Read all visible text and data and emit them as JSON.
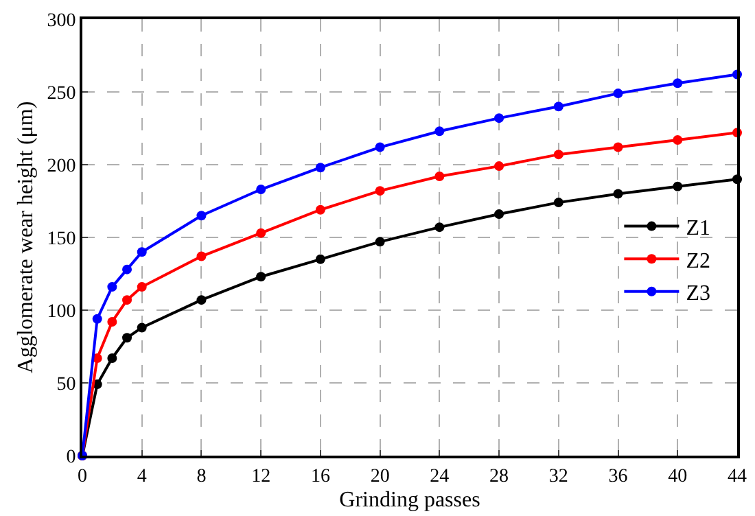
{
  "chart_data": {
    "type": "line",
    "xlabel": "Grinding passes",
    "ylabel": "Agglomerate wear height (μm)",
    "x": [
      0,
      1,
      2,
      3,
      4,
      8,
      12,
      16,
      20,
      24,
      28,
      32,
      36,
      40,
      44
    ],
    "series": [
      {
        "name": "Z1",
        "color": "#000000",
        "values": [
          0,
          49,
          67,
          81,
          88,
          107,
          123,
          135,
          147,
          157,
          166,
          174,
          180,
          185,
          190
        ]
      },
      {
        "name": "Z2",
        "color": "#ff0000",
        "values": [
          0,
          67,
          92,
          107,
          116,
          137,
          153,
          169,
          182,
          192,
          199,
          207,
          212,
          217,
          222
        ]
      },
      {
        "name": "Z3",
        "color": "#0000ff",
        "values": [
          0,
          94,
          116,
          128,
          140,
          165,
          183,
          198,
          212,
          223,
          232,
          240,
          249,
          256,
          262
        ]
      }
    ],
    "xlim": [
      0,
      44
    ],
    "xticks": [
      0,
      4,
      8,
      12,
      16,
      20,
      24,
      28,
      32,
      36,
      40,
      44
    ],
    "ylim": [
      0,
      300
    ],
    "yticks": [
      0,
      50,
      100,
      150,
      200,
      250,
      300
    ],
    "grid": true,
    "legend": "right",
    "marker": "circle",
    "line_style": "solid"
  }
}
